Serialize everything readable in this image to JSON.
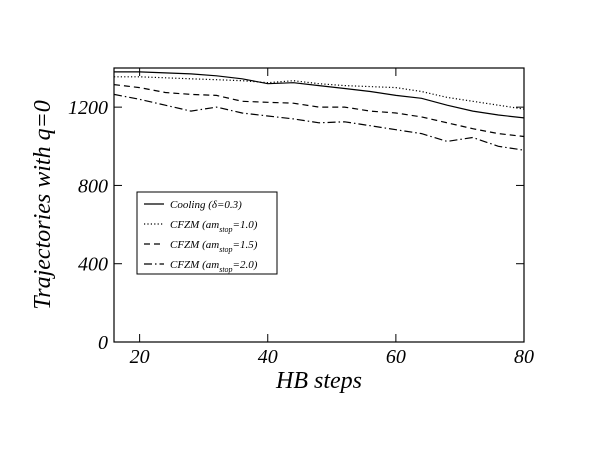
{
  "chart_data": {
    "type": "line",
    "title": "",
    "xlabel": "HB steps",
    "ylabel": "Trajectories with q=0",
    "xlim": [
      16,
      80
    ],
    "ylim": [
      0,
      1400
    ],
    "xticks": [
      20,
      40,
      60,
      80
    ],
    "yticks": [
      0,
      400,
      800,
      1200
    ],
    "grid": false,
    "legend_position": "center-left",
    "series": [
      {
        "name": "Cooling (δ=0.3)",
        "legend_main": "Cooling (δ=0.3)",
        "legend_sub": "",
        "legend_tail": "",
        "dash": "solid",
        "x": [
          16,
          20,
          24,
          28,
          32,
          36,
          40,
          44,
          48,
          52,
          56,
          60,
          64,
          68,
          72,
          76,
          80
        ],
        "y": [
          1380,
          1380,
          1375,
          1370,
          1360,
          1345,
          1320,
          1325,
          1310,
          1295,
          1280,
          1260,
          1245,
          1210,
          1180,
          1160,
          1145
        ]
      },
      {
        "name": "CFZM (am_stop=1.0)",
        "legend_main": "CFZM (am",
        "legend_sub": "stop",
        "legend_tail": "=1.0)",
        "dash": "dotted",
        "x": [
          16,
          20,
          24,
          28,
          32,
          36,
          40,
          44,
          48,
          52,
          56,
          60,
          64,
          68,
          72,
          76,
          80
        ],
        "y": [
          1355,
          1355,
          1350,
          1345,
          1340,
          1335,
          1325,
          1335,
          1320,
          1310,
          1305,
          1300,
          1280,
          1250,
          1230,
          1210,
          1190
        ]
      },
      {
        "name": "CFZM (am_stop=1.5)",
        "legend_main": "CFZM (am",
        "legend_sub": "stop",
        "legend_tail": "=1.5)",
        "dash": "dashed",
        "x": [
          16,
          20,
          24,
          28,
          32,
          36,
          40,
          44,
          48,
          52,
          56,
          60,
          64,
          68,
          72,
          76,
          80
        ],
        "y": [
          1315,
          1300,
          1275,
          1265,
          1260,
          1230,
          1225,
          1220,
          1200,
          1200,
          1180,
          1170,
          1150,
          1120,
          1090,
          1065,
          1050
        ]
      },
      {
        "name": "CFZM (am_stop=2.0)",
        "legend_main": "CFZM (am",
        "legend_sub": "stop",
        "legend_tail": "=2.0)",
        "dash": "dashdot",
        "x": [
          16,
          20,
          24,
          28,
          32,
          36,
          40,
          44,
          48,
          52,
          56,
          60,
          64,
          68,
          72,
          76,
          80
        ],
        "y": [
          1265,
          1240,
          1210,
          1180,
          1200,
          1170,
          1155,
          1140,
          1120,
          1125,
          1105,
          1085,
          1065,
          1025,
          1045,
          1000,
          980
        ]
      }
    ]
  }
}
